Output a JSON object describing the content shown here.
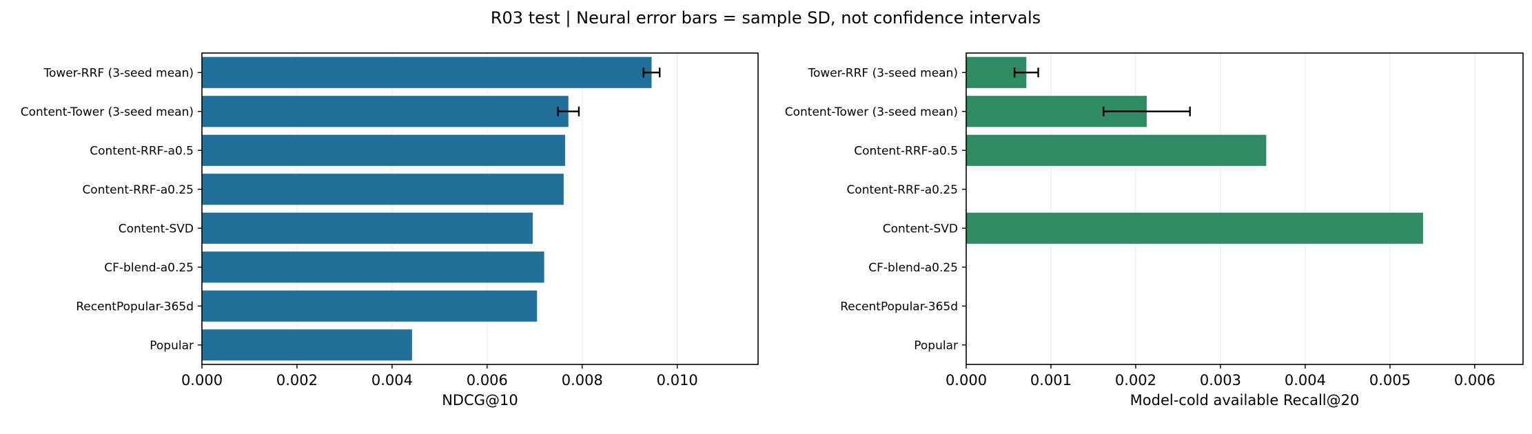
{
  "figure": {
    "title": "R03 test | Neural error bars = sample SD, not confidence intervals"
  },
  "chart_data": [
    {
      "type": "bar",
      "orientation": "horizontal",
      "categories": [
        "Tower-RRF (3-seed mean)",
        "Content-Tower (3-seed mean)",
        "Content-RRF-a0.5",
        "Content-RRF-a0.25",
        "Content-SVD",
        "CF-blend-a0.25",
        "RecentPopular-365d",
        "Popular"
      ],
      "values": [
        0.00946,
        0.00771,
        0.00764,
        0.00761,
        0.00696,
        0.0072,
        0.00705,
        0.00442
      ],
      "errors": [
        0.00017,
        0.00022,
        null,
        null,
        null,
        null,
        null,
        null
      ],
      "xlabel": "NDCG@10",
      "ylabel": "",
      "xlim": [
        0,
        0.0117
      ],
      "xticks": [
        0,
        0.002,
        0.004,
        0.006,
        0.008,
        0.01
      ],
      "xtick_labels": [
        "0.000",
        "0.002",
        "0.004",
        "0.006",
        "0.008",
        "0.010"
      ],
      "grid": "x",
      "color": "#21709c"
    },
    {
      "type": "bar",
      "orientation": "horizontal",
      "categories": [
        "Tower-RRF (3-seed mean)",
        "Content-Tower (3-seed mean)",
        "Content-RRF-a0.5",
        "Content-RRF-a0.25",
        "Content-SVD",
        "CF-blend-a0.25",
        "RecentPopular-365d",
        "Popular"
      ],
      "values": [
        0.00071,
        0.00213,
        0.00354,
        0,
        0.00539,
        0,
        0,
        0
      ],
      "errors": [
        0.00014,
        0.00051,
        null,
        null,
        null,
        null,
        null,
        null
      ],
      "xlabel": "Model-cold available Recall@20",
      "ylabel": "",
      "xlim": [
        0,
        0.00657
      ],
      "xticks": [
        0,
        0.001,
        0.002,
        0.003,
        0.004,
        0.005,
        0.006
      ],
      "xtick_labels": [
        "0.000",
        "0.001",
        "0.002",
        "0.003",
        "0.004",
        "0.005",
        "0.006"
      ],
      "grid": "x",
      "color": "#2e8b63"
    }
  ]
}
